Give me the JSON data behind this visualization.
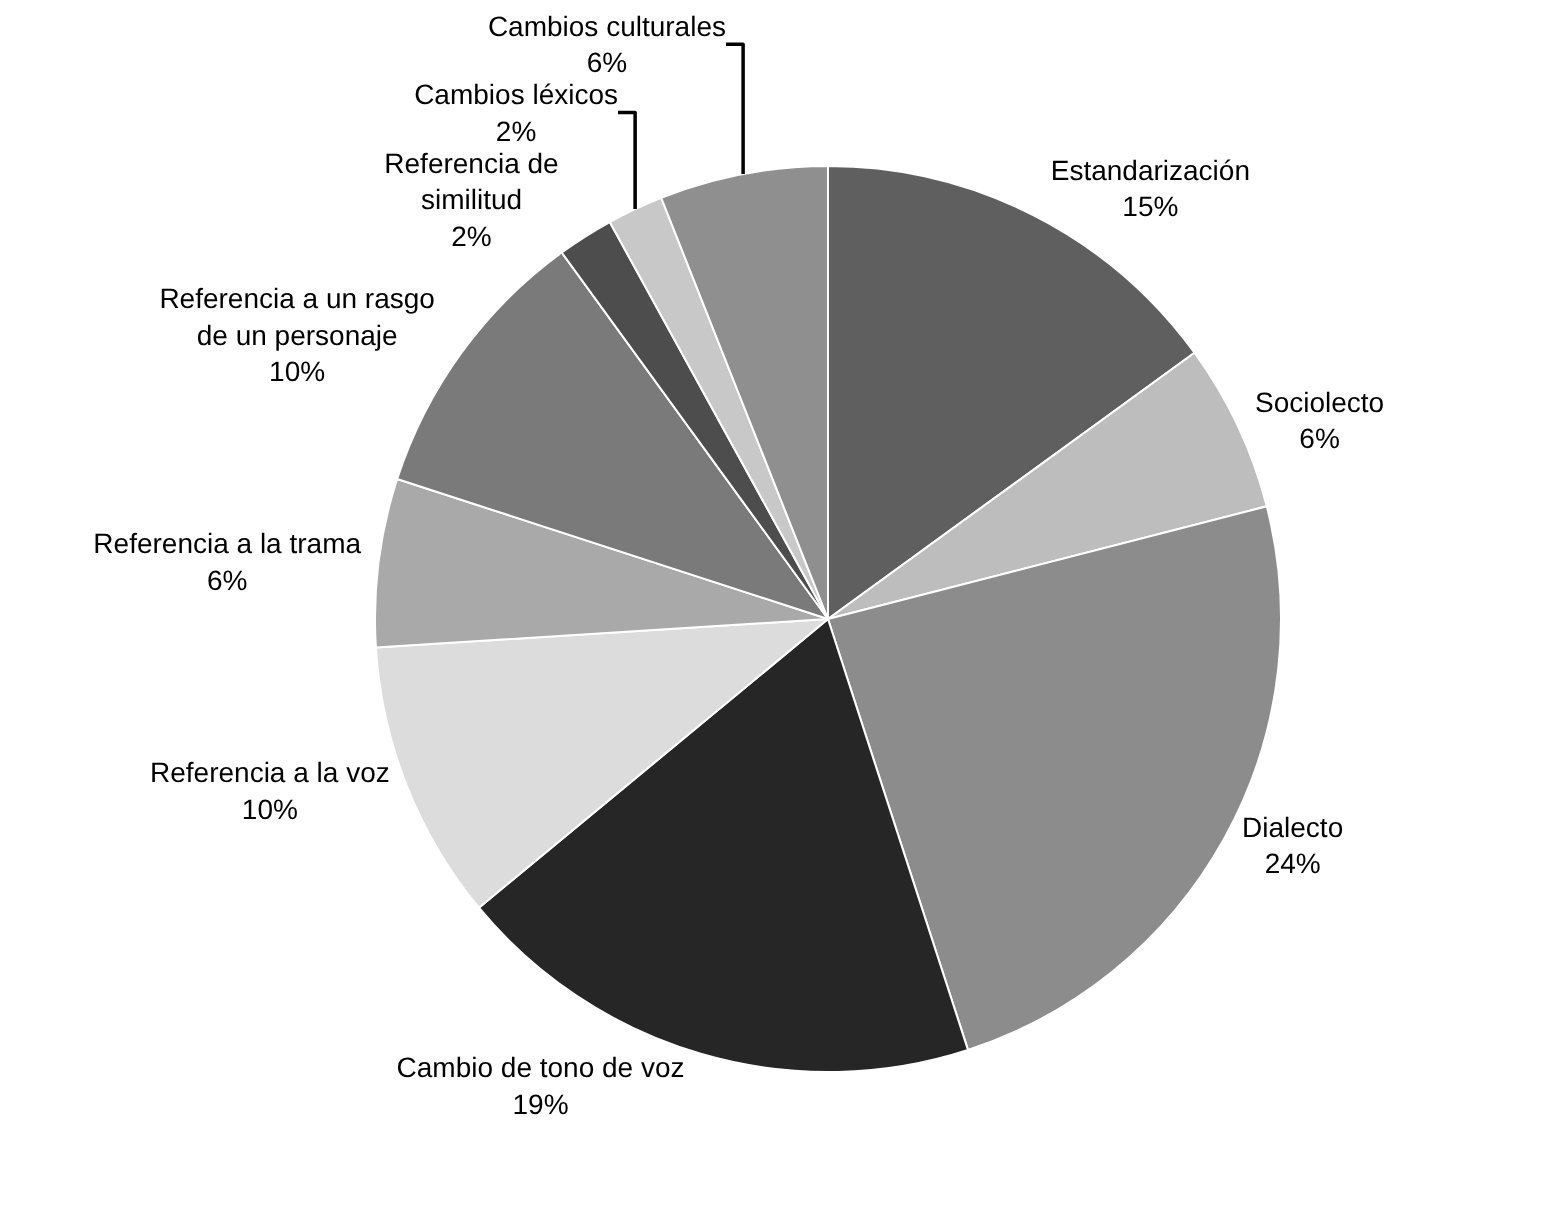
{
  "chart_data": {
    "type": "pie",
    "categories": [
      "Estandarización",
      "Sociolecto",
      "Dialecto",
      "Cambio de tono de voz",
      "Referencia a la voz",
      "Referencia a la trama",
      "Referencia a un rasgo de un personaje",
      "Referencia de similitud",
      "Cambios léxicos",
      "Cambios culturales"
    ],
    "values": [
      15,
      6,
      24,
      19,
      10,
      6,
      10,
      2,
      2,
      6
    ],
    "value_labels": [
      "15%",
      "6%",
      "24%",
      "19%",
      "10%",
      "6%",
      "10%",
      "2%",
      "2%",
      "6%"
    ],
    "colors": [
      "#5f5f5f",
      "#bdbdbd",
      "#8c8c8c",
      "#262626",
      "#dcdcdc",
      "#a9a9a9",
      "#7a7a7a",
      "#4d4d4d",
      "#c8c8c8",
      "#8f8f8f"
    ],
    "legend": false
  }
}
